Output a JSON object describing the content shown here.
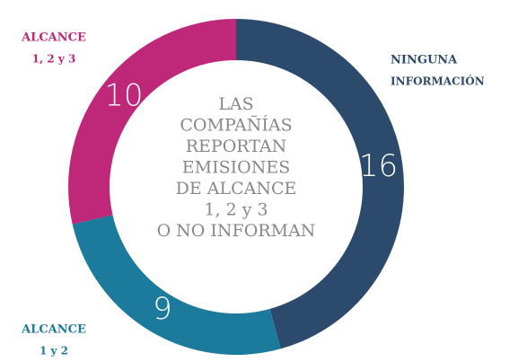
{
  "chart_data": {
    "type": "donut",
    "categories": [
      [
        "NINGUNA",
        "INFORMACIÓN"
      ],
      [
        "ALCANCE",
        "1 y 2"
      ],
      [
        "ALCANCE",
        "1, 2 y 3"
      ]
    ],
    "values": [
      16,
      9,
      10
    ],
    "colors": [
      "#2c4a6b",
      "#1c7a9c",
      "#bf2778"
    ],
    "center_text": [
      "LAS",
      "COMPAÑÍAS",
      "REPORTAN",
      "EMISIONES",
      "DE ALCANCE",
      "1, 2 y 3",
      "O NO INFORMAN"
    ]
  }
}
